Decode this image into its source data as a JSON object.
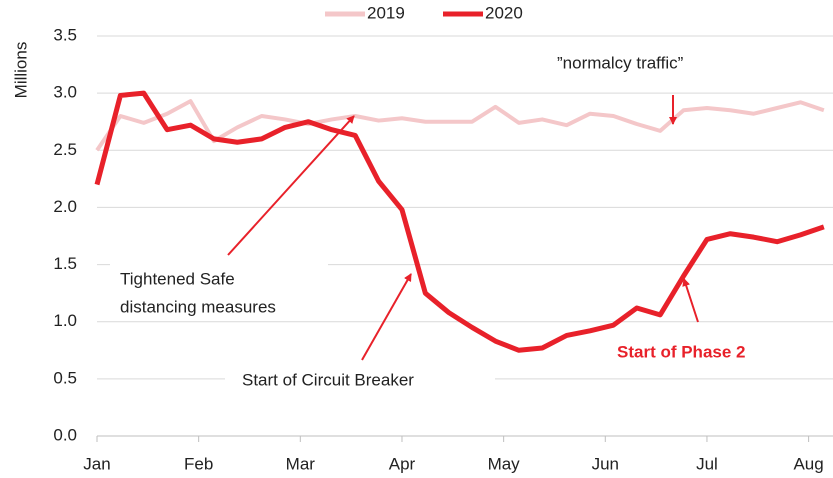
{
  "chart_data": {
    "type": "line",
    "y_label": "Millions",
    "x": [
      0,
      0.23,
      0.46,
      0.69,
      0.92,
      1.15,
      1.38,
      1.62,
      1.85,
      2.08,
      2.31,
      2.54,
      2.77,
      3.0,
      3.23,
      3.46,
      3.69,
      3.92,
      4.15,
      4.38,
      4.62,
      4.85,
      5.08,
      5.31,
      5.54,
      5.77,
      6.0,
      6.23,
      6.46,
      6.69,
      6.92,
      7.15
    ],
    "series": [
      {
        "name": "2019",
        "color": "#f4c7c9",
        "values": [
          2.5,
          2.8,
          2.74,
          2.82,
          2.93,
          2.58,
          2.7,
          2.8,
          2.77,
          2.73,
          2.77,
          2.8,
          2.76,
          2.78,
          2.75,
          2.75,
          2.75,
          2.88,
          2.74,
          2.77,
          2.72,
          2.82,
          2.8,
          2.73,
          2.67,
          2.85,
          2.87,
          2.85,
          2.82,
          2.87,
          2.92,
          2.85
        ]
      },
      {
        "name": "2020",
        "color": "#e8212a",
        "values": [
          2.2,
          2.98,
          3.0,
          2.68,
          2.72,
          2.6,
          2.57,
          2.6,
          2.7,
          2.75,
          2.68,
          2.63,
          2.23,
          1.98,
          1.25,
          1.08,
          0.95,
          0.83,
          0.75,
          0.77,
          0.88,
          0.92,
          0.97,
          1.12,
          1.06,
          1.4,
          1.72,
          1.77,
          1.74,
          1.7,
          1.76,
          1.83
        ]
      }
    ],
    "xlim": [
      0,
      7.24
    ],
    "xticks": [
      {
        "value": 0,
        "label": "Jan"
      },
      {
        "value": 1,
        "label": "Feb"
      },
      {
        "value": 2,
        "label": "Mar"
      },
      {
        "value": 3,
        "label": "Apr"
      },
      {
        "value": 4,
        "label": "May"
      },
      {
        "value": 5,
        "label": "Jun"
      },
      {
        "value": 6,
        "label": "Jul"
      },
      {
        "value": 7,
        "label": "Aug"
      }
    ],
    "ylim": [
      0,
      3.5
    ],
    "yticks": [
      {
        "value": 0,
        "label": "0.0"
      },
      0.5,
      {
        "value": 1,
        "label": "1.0"
      },
      1.5,
      {
        "value": 2,
        "label": "2.0"
      },
      2.5,
      {
        "value": 3,
        "label": "3.0"
      },
      3.5
    ],
    "grid": true,
    "legend": "top",
    "annotations": [
      "”normalcy traffic”",
      "Tightened Safe",
      "distancing measures",
      "Start of Circuit Breaker",
      "Start of Phase 2"
    ]
  }
}
